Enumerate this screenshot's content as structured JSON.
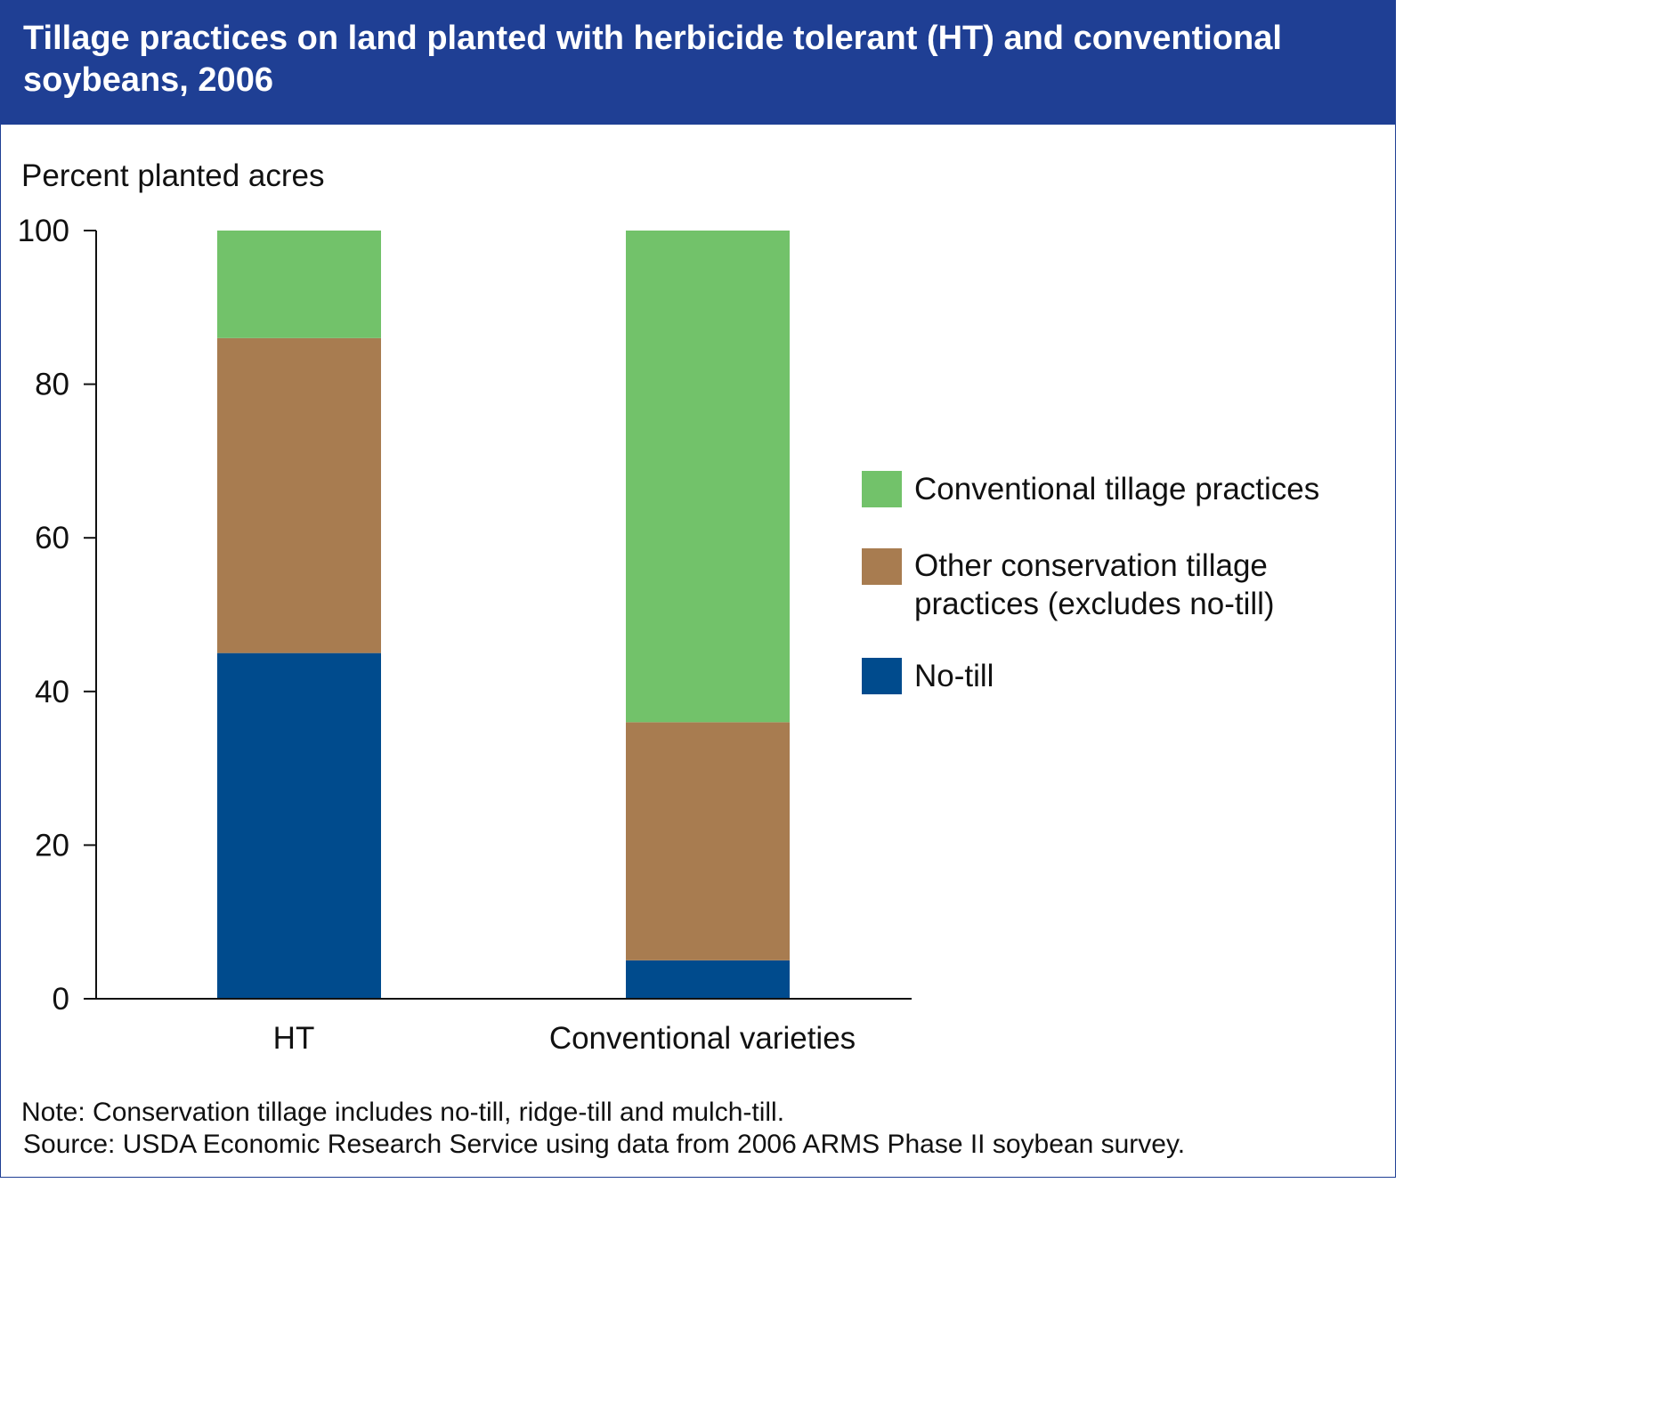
{
  "header": {
    "title": "Tillage practices on land planted with herbicide tolerant (HT) and conventional soybeans, 2006",
    "background_color": "#1f3f94"
  },
  "chart_data": {
    "type": "bar",
    "stacked": true,
    "title": "Tillage practices on land planted with herbicide tolerant (HT) and conventional soybeans, 2006",
    "ylabel": "Percent planted acres",
    "xlabel": "",
    "ylim": [
      0,
      100
    ],
    "yticks": [
      0,
      20,
      40,
      60,
      80,
      100
    ],
    "grid": false,
    "legend_position": "right",
    "categories": [
      "HT",
      "Conventional varieties"
    ],
    "series": [
      {
        "name": "No-till",
        "color": "#004b8d",
        "values": [
          45,
          5
        ]
      },
      {
        "name": "Other conservation tillage practices (excludes no-till)",
        "color": "#a87c50",
        "values": [
          41,
          31
        ]
      },
      {
        "name": "Conventional tillage practices",
        "color": "#72c26a",
        "values": [
          14,
          64
        ]
      }
    ]
  },
  "legend": {
    "items": [
      {
        "label": "Conventional tillage practices",
        "color": "#72c26a"
      },
      {
        "label": "Other conservation tillage practices (excludes no-till)",
        "color": "#a87c50"
      },
      {
        "label": "No-till",
        "color": "#004b8d"
      }
    ]
  },
  "footer": {
    "note": "Note: Conservation tillage includes no-till, ridge-till and mulch-till.",
    "source": "Source: USDA Economic Research Service using data from 2006 ARMS Phase II soybean survey."
  }
}
